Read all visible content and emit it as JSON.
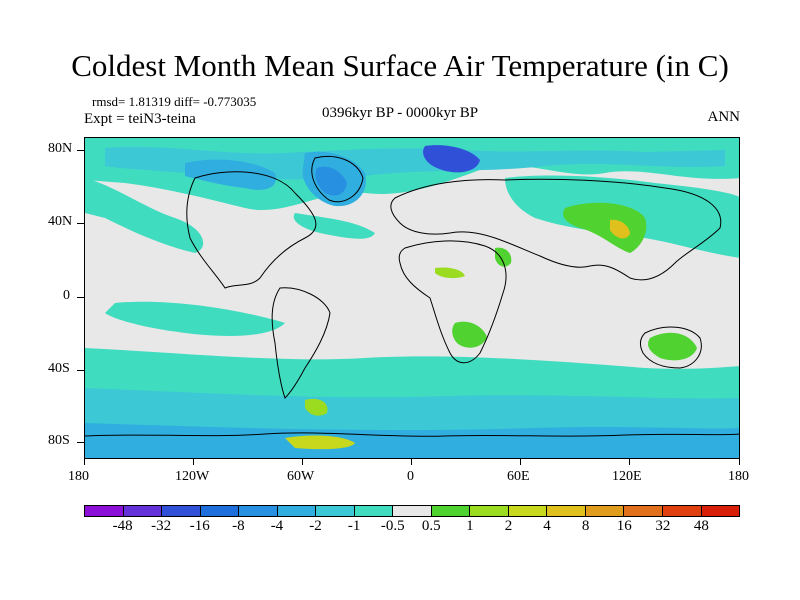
{
  "title": "Coldest Month Mean Surface Air Temperature (in C)",
  "stats": "rmsd= 1.81319 diff= -0.773035",
  "experiment": "Expt = teiN3-teina",
  "period": "0396kyr BP - 0000kyr BP",
  "season": "ANN",
  "lat_labels": [
    "80N",
    "40N",
    "0",
    "40S",
    "80S"
  ],
  "lon_labels": [
    "180",
    "120W",
    "60W",
    "0",
    "60E",
    "120E",
    "180"
  ],
  "colorbar": {
    "colors": [
      "#8c10d8",
      "#6432d8",
      "#3050d8",
      "#1e6edc",
      "#2890e0",
      "#30aee0",
      "#3cc8d4",
      "#40dcc0",
      "#e8e8e8",
      "#50d230",
      "#9cdc20",
      "#c8d81c",
      "#e0c01c",
      "#e09c1c",
      "#e0701c",
      "#e04010",
      "#d82008"
    ],
    "labels": [
      "-48",
      "-32",
      "-16",
      "-8",
      "-4",
      "-2",
      "-1",
      "-0.5",
      "0.5",
      "1",
      "2",
      "4",
      "8",
      "16",
      "32",
      "48"
    ]
  },
  "map_colors": {
    "neutral": "#e8e8e8",
    "cool1": "#40dcc0",
    "cool2": "#3cc8d4",
    "cool3": "#30aee0",
    "cool4": "#2890e0",
    "cool5": "#1e6edc",
    "cool6": "#3050d8",
    "warm1": "#50d230",
    "warm2": "#9cdc20",
    "warm3": "#c8d81c",
    "warm4": "#e0c01c"
  }
}
